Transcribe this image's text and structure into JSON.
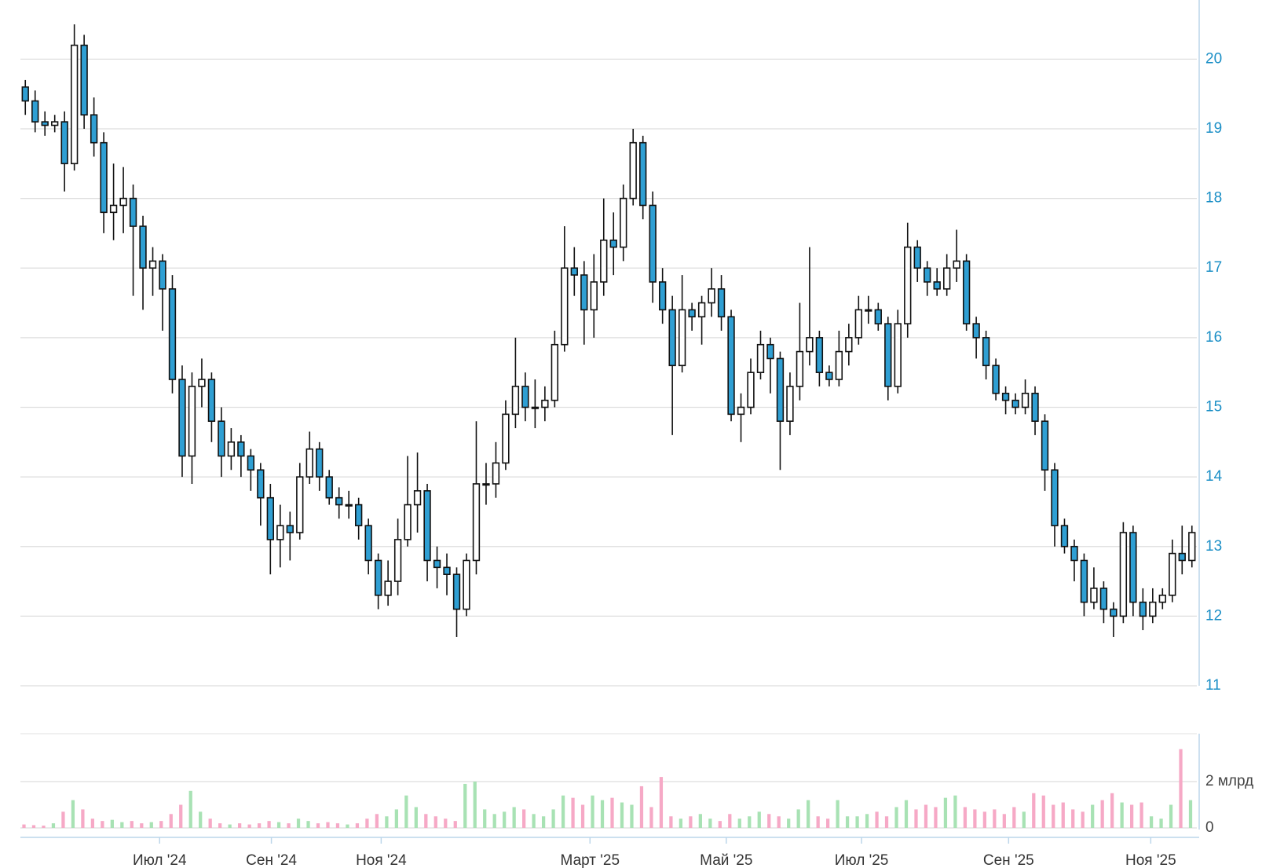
{
  "chart_data": {
    "type": "candlestick",
    "open": [
      19.6,
      19.4,
      19.1,
      19.05,
      19.1,
      18.5,
      20.2,
      19.2,
      18.8,
      17.8,
      17.9,
      18.0,
      17.6,
      17.0,
      17.1,
      16.7,
      15.4,
      14.3,
      15.3,
      15.4,
      14.8,
      14.3,
      14.5,
      14.3,
      14.1,
      13.7,
      13.1,
      13.3,
      13.2,
      14.0,
      14.4,
      14.0,
      13.7,
      13.6,
      13.6,
      13.3,
      12.8,
      12.3,
      12.5,
      13.1,
      13.6,
      13.8,
      12.8,
      12.7,
      12.6,
      12.1,
      12.8,
      13.9,
      13.9,
      14.2,
      14.9,
      15.3,
      15.0,
      15.0,
      15.1,
      15.9,
      17.0,
      16.9,
      16.4,
      16.8,
      17.4,
      17.3,
      18.0,
      18.8,
      17.9,
      16.8,
      16.4,
      15.6,
      16.4,
      16.3,
      16.5,
      16.7,
      16.3,
      14.9,
      15.0,
      15.5,
      15.9,
      15.7,
      14.8,
      15.3,
      15.8,
      16.0,
      15.5,
      15.4,
      15.8,
      16.0,
      16.4,
      16.4,
      16.2,
      15.3,
      16.2,
      17.3,
      17.0,
      16.8,
      16.7,
      17.0,
      17.1,
      16.2,
      16.0,
      15.6,
      15.2,
      15.1,
      15.0,
      15.2,
      14.8,
      14.1,
      13.3,
      13.0,
      12.8,
      12.2,
      12.4,
      12.1,
      12.0,
      13.2,
      12.2,
      12.0,
      12.2,
      12.3,
      12.9,
      12.8
    ],
    "high": [
      19.7,
      19.55,
      19.25,
      19.2,
      19.25,
      20.5,
      20.35,
      19.45,
      18.95,
      18.5,
      18.45,
      18.2,
      17.75,
      17.3,
      17.2,
      16.9,
      15.6,
      15.5,
      15.7,
      15.5,
      15.0,
      14.7,
      14.6,
      14.4,
      14.2,
      13.9,
      13.6,
      13.5,
      14.2,
      14.65,
      14.5,
      14.1,
      13.85,
      13.8,
      13.7,
      13.4,
      12.9,
      12.8,
      13.4,
      14.3,
      14.35,
      13.9,
      13.0,
      12.9,
      12.7,
      12.9,
      14.8,
      14.2,
      14.5,
      15.1,
      16.0,
      15.5,
      15.4,
      15.3,
      16.1,
      17.6,
      17.3,
      17.1,
      17.2,
      18.0,
      17.8,
      18.2,
      19.0,
      18.9,
      18.1,
      17.0,
      16.6,
      16.9,
      16.5,
      16.6,
      17.0,
      16.9,
      16.4,
      15.2,
      15.7,
      16.1,
      16.0,
      15.8,
      15.5,
      16.5,
      17.3,
      16.1,
      15.6,
      16.1,
      16.2,
      16.6,
      16.6,
      16.5,
      16.3,
      16.4,
      17.65,
      17.4,
      17.1,
      17.0,
      17.2,
      17.55,
      17.2,
      16.3,
      16.1,
      15.7,
      15.3,
      15.2,
      15.4,
      15.3,
      14.9,
      14.2,
      13.4,
      13.1,
      12.9,
      12.7,
      12.5,
      12.2,
      13.35,
      13.3,
      12.4,
      12.4,
      12.4,
      13.1,
      13.3,
      13.3
    ],
    "low": [
      19.2,
      18.95,
      18.9,
      18.95,
      18.1,
      18.4,
      19.0,
      18.6,
      17.5,
      17.4,
      17.5,
      16.6,
      16.4,
      16.6,
      16.1,
      15.2,
      14.0,
      13.9,
      15.0,
      14.5,
      14.0,
      14.1,
      14.0,
      13.8,
      13.3,
      12.6,
      12.7,
      12.8,
      13.1,
      13.9,
      13.8,
      13.6,
      13.4,
      13.4,
      13.1,
      12.6,
      12.1,
      12.15,
      12.3,
      13.0,
      13.2,
      12.5,
      12.4,
      12.3,
      11.7,
      12.0,
      12.6,
      13.6,
      13.7,
      14.1,
      14.7,
      14.8,
      14.7,
      14.8,
      15.0,
      15.8,
      16.6,
      15.9,
      16.0,
      16.6,
      16.9,
      17.1,
      17.9,
      17.7,
      16.5,
      16.2,
      14.6,
      15.5,
      16.1,
      15.9,
      16.3,
      16.1,
      14.8,
      14.5,
      14.9,
      15.4,
      15.2,
      14.1,
      14.6,
      15.1,
      15.6,
      15.3,
      15.3,
      15.3,
      15.6,
      15.9,
      16.2,
      16.1,
      15.1,
      15.2,
      16.0,
      16.8,
      16.6,
      16.6,
      16.6,
      16.8,
      16.1,
      15.7,
      15.4,
      15.1,
      14.9,
      14.9,
      14.9,
      14.6,
      13.8,
      13.0,
      12.9,
      12.5,
      12.0,
      12.1,
      11.9,
      11.7,
      11.9,
      12.0,
      11.8,
      11.9,
      12.1,
      12.2,
      12.6,
      12.7
    ],
    "close": [
      19.4,
      19.1,
      19.05,
      19.1,
      18.5,
      20.2,
      19.2,
      18.8,
      17.8,
      17.9,
      18.0,
      17.6,
      17.0,
      17.1,
      16.7,
      15.4,
      14.3,
      15.3,
      15.4,
      14.8,
      14.3,
      14.5,
      14.3,
      14.1,
      13.7,
      13.1,
      13.3,
      13.2,
      14.0,
      14.4,
      14.0,
      13.7,
      13.6,
      13.6,
      13.3,
      12.8,
      12.3,
      12.5,
      13.1,
      13.6,
      13.8,
      12.8,
      12.7,
      12.6,
      12.1,
      12.8,
      13.9,
      13.9,
      14.2,
      14.9,
      15.3,
      15.0,
      15.0,
      15.1,
      15.9,
      17.0,
      16.9,
      16.4,
      16.8,
      17.4,
      17.3,
      18.0,
      18.8,
      17.9,
      16.8,
      16.4,
      15.6,
      16.4,
      16.3,
      16.5,
      16.7,
      16.3,
      14.9,
      15.0,
      15.5,
      15.9,
      15.7,
      14.8,
      15.3,
      15.8,
      16.0,
      15.5,
      15.4,
      15.8,
      16.0,
      16.4,
      16.4,
      16.2,
      15.3,
      16.2,
      17.3,
      17.0,
      16.8,
      16.7,
      17.0,
      17.1,
      16.2,
      16.0,
      15.6,
      15.2,
      15.1,
      15.0,
      15.2,
      14.8,
      14.1,
      13.3,
      13.0,
      12.8,
      12.2,
      12.4,
      12.1,
      12.0,
      13.2,
      12.2,
      12.0,
      12.2,
      12.3,
      12.9,
      12.8,
      13.2
    ],
    "up_color": "#ffffff",
    "down_color": "#2f9fd3",
    "wick_color": "#111111",
    "xlim": [
      0,
      120
    ],
    "xticks": [
      {
        "value": 14.2,
        "label": "Июл '24"
      },
      {
        "value": 25.6,
        "label": "Сен '24"
      },
      {
        "value": 36.8,
        "label": "Ноя '24"
      },
      {
        "value": 58.1,
        "label": "Март '25"
      },
      {
        "value": 72.0,
        "label": "Май '25"
      },
      {
        "value": 85.8,
        "label": "Июл '25"
      },
      {
        "value": 100.8,
        "label": "Сен '25"
      },
      {
        "value": 115.3,
        "label": "Ноя '25"
      }
    ],
    "ylim": [
      11,
      20.85
    ],
    "yticks": [
      11,
      12,
      13,
      14,
      15,
      16,
      17,
      18,
      19,
      20
    ],
    "grid": true,
    "volume": {
      "values": [
        0.15,
        0.12,
        0.1,
        0.2,
        0.7,
        1.2,
        0.8,
        0.4,
        0.3,
        0.35,
        0.25,
        0.3,
        0.2,
        0.25,
        0.3,
        0.6,
        1.0,
        1.6,
        0.7,
        0.4,
        0.2,
        0.15,
        0.2,
        0.15,
        0.2,
        0.3,
        0.25,
        0.2,
        0.4,
        0.3,
        0.2,
        0.25,
        0.2,
        0.15,
        0.2,
        0.4,
        0.6,
        0.5,
        0.8,
        1.4,
        0.9,
        0.6,
        0.5,
        0.4,
        0.3,
        1.9,
        2.0,
        0.8,
        0.6,
        0.7,
        0.9,
        0.8,
        0.6,
        0.5,
        0.8,
        1.4,
        1.3,
        1.0,
        1.4,
        1.2,
        1.3,
        1.1,
        1.0,
        1.8,
        0.9,
        2.2,
        0.5,
        0.4,
        0.5,
        0.6,
        0.4,
        0.3,
        0.6,
        0.4,
        0.5,
        0.7,
        0.6,
        0.5,
        0.4,
        0.8,
        1.2,
        0.5,
        0.4,
        1.2,
        0.5,
        0.5,
        0.6,
        0.7,
        0.5,
        0.9,
        1.2,
        0.8,
        1.0,
        0.9,
        1.3,
        1.4,
        0.9,
        0.8,
        0.7,
        0.8,
        0.6,
        0.9,
        0.7,
        1.5,
        1.4,
        1.0,
        1.1,
        0.8,
        0.7,
        1.0,
        1.2,
        1.5,
        1.1,
        1.0,
        1.1,
        0.5,
        0.4,
        1.0,
        3.4,
        1.2
      ],
      "up_color": "#a8e2b4",
      "down_color": "#f6a9c6",
      "ylim": [
        0,
        4
      ],
      "yticks": [
        0,
        {
          "value": 2,
          "label": "2 млрд"
        }
      ]
    }
  }
}
